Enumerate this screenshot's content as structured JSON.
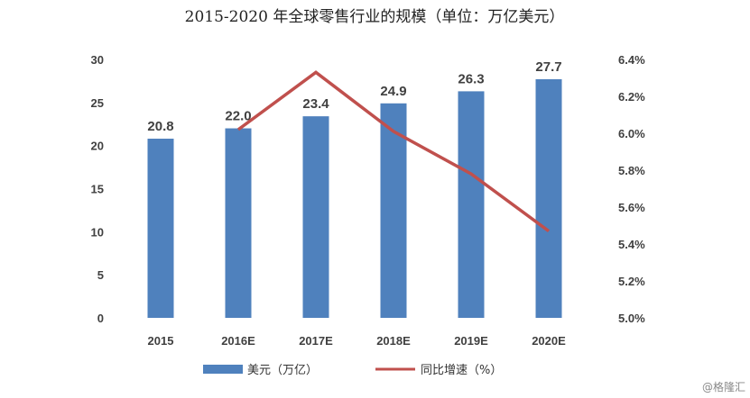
{
  "chart_data": {
    "type": "bar+line",
    "title": "2015-2020 年全球零售行业的规模（单位：万亿美元）",
    "categories": [
      "2015",
      "2016E",
      "2017E",
      "2018E",
      "2019E",
      "2020E"
    ],
    "series": [
      {
        "name": "美元（万亿）",
        "type": "bar",
        "axis": "left",
        "values": [
          20.8,
          22.0,
          23.4,
          24.9,
          26.3,
          27.7
        ],
        "color": "#4f81bd"
      },
      {
        "name": "同比增速（%）",
        "type": "line",
        "axis": "right",
        "values": [
          null,
          6.02,
          6.33,
          6.01,
          5.78,
          5.47
        ],
        "color": "#c0504d"
      }
    ],
    "y_left": {
      "range": [
        0,
        30
      ],
      "ticks": [
        "0",
        "5",
        "10",
        "15",
        "20",
        "25",
        "30"
      ]
    },
    "y_right": {
      "range": [
        5.0,
        6.4
      ],
      "ticks": [
        "5.0%",
        "5.2%",
        "5.4%",
        "5.6%",
        "5.8%",
        "6.0%",
        "6.2%",
        "6.4%"
      ]
    },
    "grid": false,
    "legend": "bottom"
  },
  "watermark": "@格隆汇"
}
